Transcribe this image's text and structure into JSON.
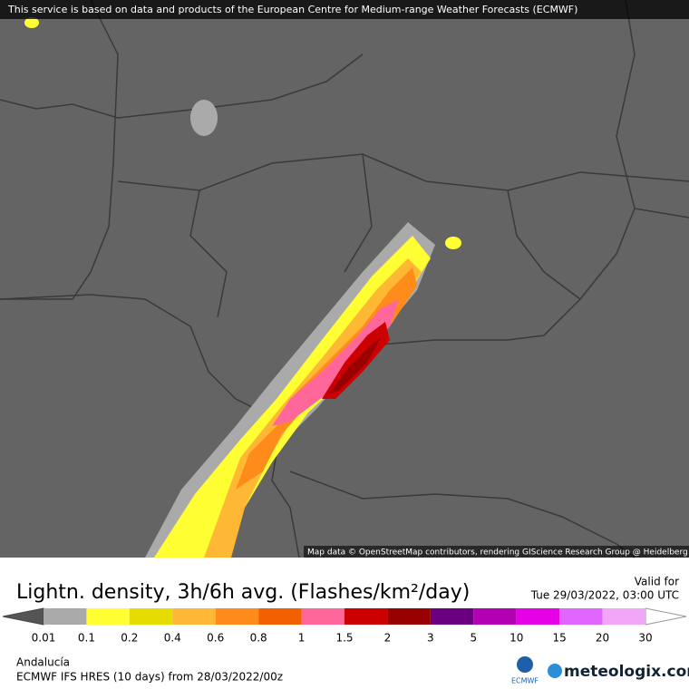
{
  "header": {
    "notice": "This service is based on data and products of the European Centre for Medium-range Weather Forecasts (ECMWF)"
  },
  "map": {
    "attribution": "Map data © OpenStreetMap contributors, rendering GIScience Research Group @ Heidelberg University"
  },
  "panel": {
    "title": "Lightn. density, 3h/6h avg. (Flashes/km²/day)",
    "valid_label": "Valid for",
    "valid_time": "Tue 29/03/2022, 03:00 UTC",
    "region": "Andalucía",
    "model": "ECMWF IFS HRES (10 days) from 28/03/2022/00z",
    "ecmwf_logo": "ECMWF",
    "brand": "meteologix.com"
  },
  "legend": {
    "labels": [
      "0.01",
      "0.1",
      "0.2",
      "0.4",
      "0.6",
      "0.8",
      "1",
      "1.5",
      "2",
      "3",
      "5",
      "10",
      "15",
      "20",
      "30"
    ],
    "colors": [
      "#aaaaaa",
      "#ffff33",
      "#e6dc00",
      "#ffb833",
      "#ff8c1a",
      "#f26000",
      "#ff6699",
      "#cc0000",
      "#990000",
      "#6a0080",
      "#b300b3",
      "#e600e6",
      "#e066ff",
      "#f2a6f7"
    ]
  }
}
